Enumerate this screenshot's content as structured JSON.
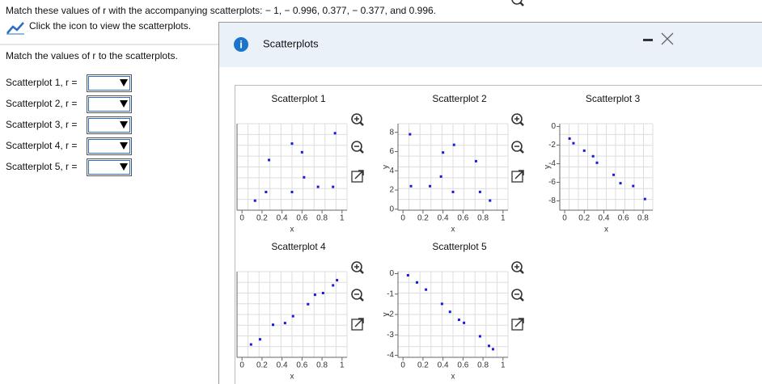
{
  "question": "Match these values of r with the accompanying scatterplots: − 1, − 0.996, 0.377, − 0.377, and 0.996.",
  "link_text": "Click the icon to view the scatterplots.",
  "instruction": "Match the values of r to the scatterplots.",
  "answers": [
    "Scatterplot 1, r =",
    "Scatterplot 2, r =",
    "Scatterplot 3, r =",
    "Scatterplot 4, r =",
    "Scatterplot 5, r ="
  ],
  "dialog": {
    "title": "Scatterplots",
    "plots": [
      {
        "type": "scatter",
        "title": "Scatterplot 1",
        "x_label": "x",
        "color": "#1a1adc",
        "xlim": [
          -0.05,
          1.05
        ],
        "ylim": [
          0,
          10
        ],
        "xticks": [
          0,
          0.2,
          0.4,
          0.6,
          0.8,
          1
        ],
        "x": [
          0.13,
          0.24,
          0.27,
          0.5,
          0.5,
          0.6,
          0.62,
          0.76,
          0.91,
          0.93
        ],
        "y": [
          1.1,
          2.1,
          5.8,
          2.1,
          7.7,
          6.7,
          3.8,
          2.7,
          2.7,
          8.9
        ]
      },
      {
        "type": "scatter",
        "title": "Scatterplot 2",
        "x_label": "x",
        "y_label": "y",
        "color": "#1a1adc",
        "xlim": [
          -0.05,
          1.05
        ],
        "ylim": [
          -0.1,
          8.9
        ],
        "xticks": [
          0,
          0.2,
          0.4,
          0.6,
          0.8,
          1
        ],
        "yticks": [
          0,
          2,
          4,
          6,
          8
        ],
        "x": [
          0.07,
          0.08,
          0.27,
          0.38,
          0.4,
          0.5,
          0.51,
          0.73,
          0.77,
          0.87
        ],
        "y": [
          7.8,
          2.4,
          2.4,
          3.4,
          5.9,
          1.8,
          6.7,
          5.0,
          1.8,
          0.9
        ]
      },
      {
        "type": "scatter",
        "title": "Scatterplot 3",
        "x_label": "x",
        "y_label": "y",
        "color": "#1a1adc",
        "xlim": [
          -0.05,
          0.9
        ],
        "ylim": [
          -9,
          0.3
        ],
        "xticks": [
          0,
          0.2,
          0.4,
          0.6,
          0.8
        ],
        "yticks": [
          0,
          -2,
          -4,
          -6,
          -8
        ],
        "x": [
          0.05,
          0.09,
          0.2,
          0.29,
          0.33,
          0.5,
          0.57,
          0.7,
          0.82
        ],
        "y": [
          -1.3,
          -1.8,
          -2.6,
          -3.2,
          -3.9,
          -5.2,
          -6.1,
          -6.4,
          -7.8
        ]
      },
      {
        "type": "scatter",
        "title": "Scatterplot 4",
        "x_label": "x",
        "color": "#1a1adc",
        "xlim": [
          -0.05,
          1.05
        ],
        "ylim": [
          0,
          10
        ],
        "xticks": [
          0,
          0.2,
          0.4,
          0.6,
          0.8,
          1
        ],
        "x": [
          0.09,
          0.18,
          0.31,
          0.43,
          0.51,
          0.66,
          0.73,
          0.81,
          0.91,
          0.95
        ],
        "y": [
          1.5,
          2.1,
          3.8,
          4.0,
          4.8,
          6.2,
          7.3,
          7.5,
          8.4,
          9.0
        ]
      },
      {
        "type": "scatter",
        "title": "Scatterplot 5",
        "x_label": "x",
        "y_label": "y",
        "color": "#1a1adc",
        "xlim": [
          -0.05,
          1.05
        ],
        "ylim": [
          -4.1,
          0.1
        ],
        "xticks": [
          0,
          0.2,
          0.4,
          0.6,
          0.8,
          1
        ],
        "yticks": [
          0,
          -1,
          -2,
          -3,
          -4
        ],
        "x": [
          0.05,
          0.14,
          0.23,
          0.39,
          0.47,
          0.56,
          0.61,
          0.77,
          0.86,
          0.9
        ],
        "y": [
          -0.08,
          -0.43,
          -0.78,
          -1.48,
          -1.87,
          -2.26,
          -2.41,
          -3.07,
          -3.54,
          -3.7
        ]
      }
    ]
  }
}
